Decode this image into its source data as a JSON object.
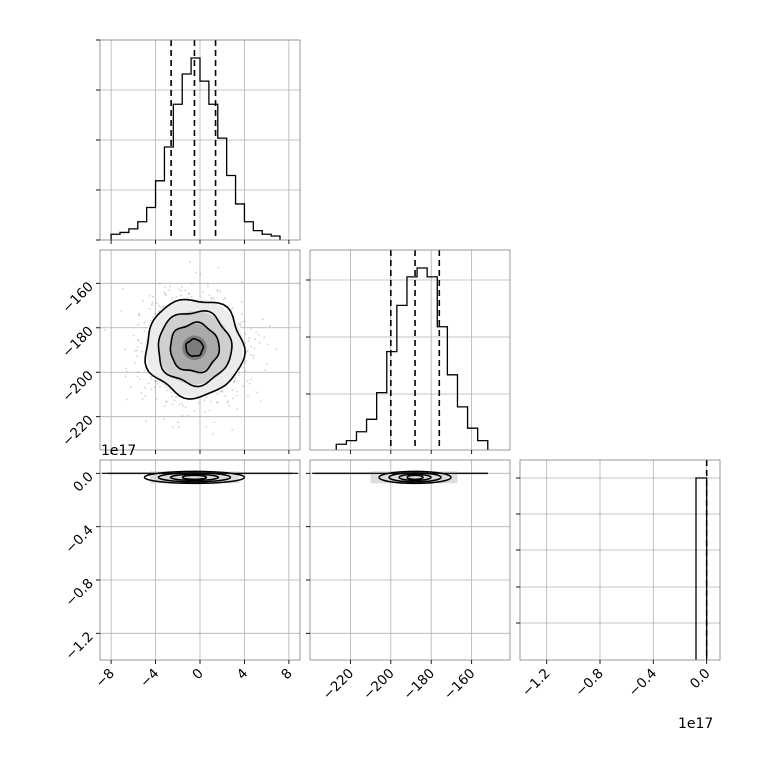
{
  "chart_data": {
    "type": "corner",
    "grid": true,
    "colors": {
      "line": "#000000",
      "grid": "#b0b0b0",
      "scatter": "#7f7f7f"
    },
    "hist_x": {
      "type": "histogram",
      "xlim": [
        -9,
        9
      ],
      "bin_edges": [
        -8,
        -7.2,
        -6.4,
        -5.6,
        -4.8,
        -4.0,
        -3.2,
        -2.4,
        -1.6,
        -0.8,
        0.0,
        0.8,
        1.6,
        2.4,
        3.2,
        4.0,
        4.8,
        5.6,
        6.4,
        7.2
      ],
      "counts": [
        1,
        2,
        4,
        8,
        16,
        31,
        50,
        74,
        91,
        100,
        87,
        74,
        55,
        34,
        18,
        8,
        3,
        1,
        0
      ],
      "quantiles": [
        -2.6,
        -0.5,
        1.4
      ],
      "x_ticks": [
        -8,
        -4,
        0,
        4,
        8
      ]
    },
    "scatter_xy": {
      "type": "2d-density",
      "xlim": [
        -9,
        9
      ],
      "ylim": [
        -235,
        -145
      ],
      "center": [
        -0.5,
        -189
      ],
      "spread": [
        2.2,
        11
      ],
      "contour_levels": [
        0.5,
        1.0,
        1.5,
        2.0
      ],
      "y_ticks": [
        -160,
        -180,
        -200,
        -220
      ],
      "y_tick_labels": [
        "−160",
        "−180",
        "−200",
        "−220"
      ]
    },
    "hist_y": {
      "type": "histogram",
      "xlim": [
        -240,
        -141
      ],
      "bin_edges": [
        -227,
        -222,
        -217,
        -212,
        -207,
        -202,
        -197,
        -192,
        -187,
        -182,
        -177,
        -172,
        -167,
        -162,
        -157,
        -152
      ],
      "counts": [
        1,
        3,
        8,
        15,
        30,
        53,
        79,
        95,
        100,
        95,
        67,
        40,
        22,
        10,
        3
      ],
      "quantiles": [
        -200,
        -188,
        -176
      ],
      "x_ticks": [
        -220,
        -200,
        -180,
        -160
      ],
      "x_tick_labels": [
        "−220",
        "−200",
        "−180",
        "−160"
      ]
    },
    "scatter_xz": {
      "type": "2d-density",
      "xlim": [
        -9,
        9
      ],
      "ylim": [
        -1.4,
        0.1
      ],
      "center": [
        -0.5,
        0.0
      ],
      "offset_label": "1e17",
      "y_ticks": [
        0.0,
        -0.4,
        -0.8,
        -1.2
      ],
      "y_tick_labels": [
        "0.0",
        "−0.4",
        "−0.8",
        "−1.2"
      ],
      "x_ticks": [
        -8,
        -4,
        0,
        4,
        8
      ],
      "x_tick_labels": [
        "−8",
        "−4",
        "0",
        "4",
        "8"
      ]
    },
    "scatter_yz": {
      "type": "2d-density",
      "xlim": [
        -240,
        -141
      ],
      "ylim": [
        -1.4,
        0.1
      ],
      "center": [
        -188,
        0.0
      ],
      "x_ticks": [
        -220,
        -200,
        -180,
        -160
      ],
      "x_tick_labels": [
        "−220",
        "−200",
        "−180",
        "−160"
      ]
    },
    "hist_z": {
      "type": "histogram",
      "xlim": [
        -1.4,
        0.1
      ],
      "bins_edges": [
        -0.08,
        0.0
      ],
      "counts": [
        100
      ],
      "quantiles": [
        0.0,
        0.0,
        0.0
      ],
      "x_ticks": [
        -1.2,
        -0.8,
        -0.4,
        0.0
      ],
      "x_tick_labels": [
        "−1.2",
        "−0.8",
        "−0.4",
        "0.0"
      ],
      "offset_label": "1e17"
    }
  }
}
